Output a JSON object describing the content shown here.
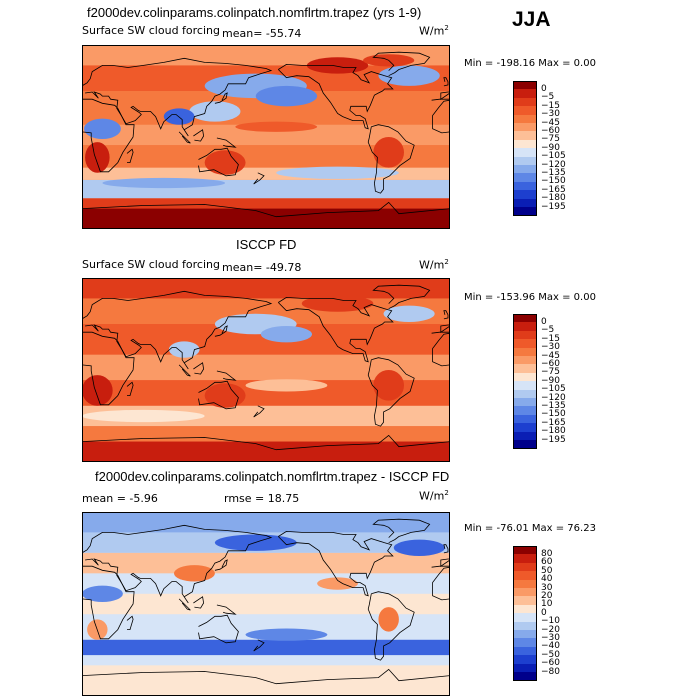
{
  "season": "JJA",
  "panels": [
    {
      "id": "model",
      "title": "f2000dev.colinparams.colinpatch.nomflrtm.trapez (yrs 1-9)",
      "subtitle_left": "Surface SW cloud forcing",
      "subtitle_mid": "mean= -55.74",
      "units": "W/m",
      "units_sup": "2",
      "min_max": "Min = -198.16 Max =    0.00",
      "colorbar_labels": [
        "0",
        "-5",
        "-15",
        "-30",
        "-45",
        "-60",
        "-75",
        "-90",
        "-105",
        "-120",
        "-135",
        "-150",
        "-165",
        "-180",
        "-195"
      ]
    },
    {
      "id": "obs",
      "title": "ISCCP FD",
      "subtitle_left": "Surface SW cloud forcing",
      "subtitle_mid": "mean= -49.78",
      "units": "W/m",
      "units_sup": "2",
      "min_max": "Min = -153.96 Max =    0.00",
      "colorbar_labels": [
        "0",
        "-5",
        "-15",
        "-30",
        "-45",
        "-60",
        "-75",
        "-90",
        "-105",
        "-120",
        "-135",
        "-150",
        "-165",
        "-180",
        "-195"
      ]
    },
    {
      "id": "diff",
      "title": "f2000dev.colinparams.colinpatch.nomflrtm.trapez - ISCCP FD",
      "subtitle_left": "mean =  -5.96",
      "subtitle_mid": "rmse =  18.75",
      "units": "W/m",
      "units_sup": "2",
      "min_max": "Min = -76.01 Max =  76.23",
      "colorbar_labels": [
        "80",
        "60",
        "50",
        "40",
        "30",
        "20",
        "10",
        "0",
        "-10",
        "-20",
        "-30",
        "-40",
        "-50",
        "-60",
        "-80"
      ]
    }
  ],
  "colors": {
    "abs_scale": [
      "#8b0000",
      "#c81e0e",
      "#e03c1a",
      "#ef5a2a",
      "#f5793f",
      "#fa9a66",
      "#fdbf97",
      "#fde6d2",
      "#d6e4f7",
      "#b0caf0",
      "#86aaeb",
      "#5e87e6",
      "#3a63de",
      "#1d3fcf",
      "#0a1eb4",
      "#00008b"
    ],
    "diff_scale": [
      "#8b0000",
      "#c81e0e",
      "#e03c1a",
      "#ef5a2a",
      "#f5793f",
      "#fa9a66",
      "#fdbf97",
      "#fde6d2",
      "#d6e4f7",
      "#b0caf0",
      "#86aaeb",
      "#5e87e6",
      "#3a63de",
      "#1d3fcf",
      "#0a1eb4",
      "#00008b"
    ]
  },
  "chart_data": [
    {
      "type": "heatmap",
      "title": "f2000dev.colinparams.colinpatch.nomflrtm.trapez (yrs 1-9)",
      "variable": "Surface SW cloud forcing",
      "units": "W/m^2",
      "season": "JJA",
      "mean": -55.74,
      "min": -198.16,
      "max": 0.0,
      "contour_levels": [
        0,
        -5,
        -15,
        -30,
        -45,
        -60,
        -75,
        -90,
        -105,
        -120,
        -135,
        -150,
        -165,
        -180,
        -195
      ]
    },
    {
      "type": "heatmap",
      "title": "ISCCP FD",
      "variable": "Surface SW cloud forcing",
      "units": "W/m^2",
      "season": "JJA",
      "mean": -49.78,
      "min": -153.96,
      "max": 0.0,
      "contour_levels": [
        0,
        -5,
        -15,
        -30,
        -45,
        -60,
        -75,
        -90,
        -105,
        -120,
        -135,
        -150,
        -165,
        -180,
        -195
      ]
    },
    {
      "type": "heatmap",
      "title": "f2000dev.colinparams.colinpatch.nomflrtm.trapez - ISCCP FD",
      "units": "W/m^2",
      "season": "JJA",
      "mean": -5.96,
      "rmse": 18.75,
      "min": -76.01,
      "max": 76.23,
      "contour_levels": [
        80,
        60,
        50,
        40,
        30,
        20,
        10,
        0,
        -10,
        -20,
        -30,
        -40,
        -50,
        -60,
        -80
      ]
    }
  ]
}
